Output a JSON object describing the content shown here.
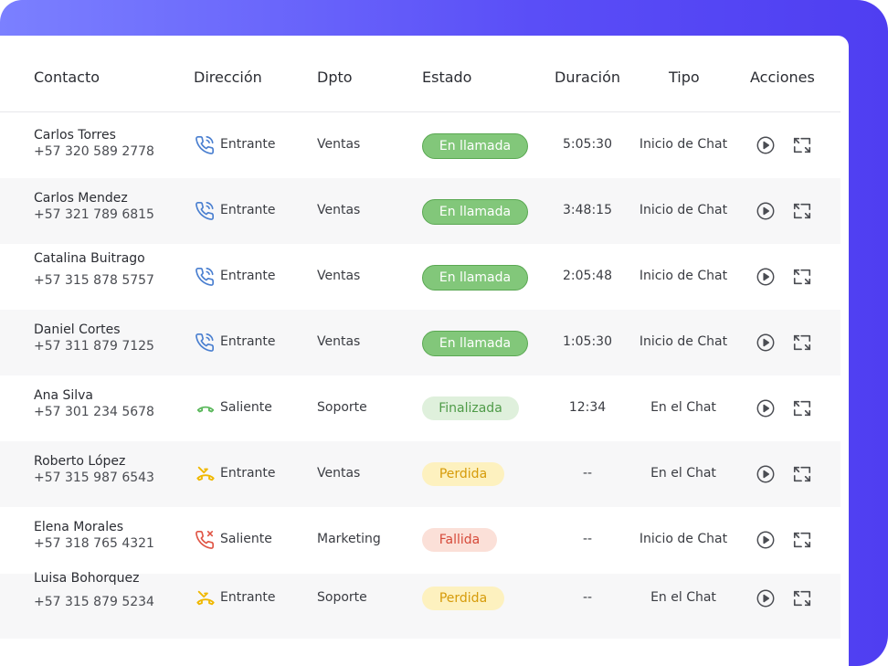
{
  "columns": {
    "contacto": "Contacto",
    "direccion": "Dirección",
    "dpto": "Dpto",
    "estado": "Estado",
    "duracion": "Duración",
    "tipo": "Tipo",
    "acciones": "Acciones"
  },
  "rows": [
    {
      "name": "Carlos Torres",
      "phone": "+57 320 589 2778",
      "direction_icon": "incoming-call-icon",
      "direction": "Entrante",
      "dept": "Ventas",
      "status": "En llamada",
      "status_style": "green",
      "duration": "5:05:30",
      "type": "Inicio de Chat"
    },
    {
      "name": "Carlos Mendez",
      "phone": "+57 321 789 6815",
      "direction_icon": "incoming-call-icon",
      "direction": "Entrante",
      "dept": "Ventas",
      "status": "En llamada",
      "status_style": "green",
      "duration": "3:48:15",
      "type": "Inicio de Chat"
    },
    {
      "name": "Catalina Buitrago",
      "phone": "+57 315 878 5757",
      "direction_icon": "incoming-call-icon",
      "direction": "Entrante",
      "dept": "Ventas",
      "status": "En llamada",
      "status_style": "green",
      "duration": "2:05:48",
      "type": "Inicio de Chat"
    },
    {
      "name": "Daniel Cortes",
      "phone": "+57 311 879 7125",
      "direction_icon": "incoming-call-icon",
      "direction": "Entrante",
      "dept": "Ventas",
      "status": "En llamada",
      "status_style": "green",
      "duration": "1:05:30",
      "type": "Inicio de Chat"
    },
    {
      "name": "Ana Silva",
      "phone": "+57 301 234 5678",
      "direction_icon": "hangup-call-icon",
      "direction": "Saliente",
      "dept": "Soporte",
      "status": "Finalizada",
      "status_style": "lightgreen",
      "duration": "12:34",
      "type": "En el Chat"
    },
    {
      "name": "Roberto López",
      "phone": "+57 315 987 6543",
      "direction_icon": "missed-call-icon",
      "direction": "Entrante",
      "dept": "Ventas",
      "status": "Perdida",
      "status_style": "yellow",
      "duration": "--",
      "type": "En el Chat"
    },
    {
      "name": "Elena Morales",
      "phone": "+57 318 765 4321",
      "direction_icon": "failed-call-icon",
      "direction": "Saliente",
      "dept": "Marketing",
      "status": "Fallida",
      "status_style": "red",
      "duration": "--",
      "type": "Inicio de Chat"
    },
    {
      "name": "Luisa Bohorquez",
      "phone": "+57 315 879 5234",
      "direction_icon": "missed-call-icon",
      "direction": "Entrante",
      "dept": "Soporte",
      "status": "Perdida",
      "status_style": "yellow",
      "duration": "--",
      "type": "En el Chat"
    }
  ],
  "actions": {
    "play_icon": "play-icon",
    "expand_icon": "expand-icon"
  },
  "colors": {
    "gradient_start": "#7b80ff",
    "gradient_end": "#4f3ef1",
    "status_green": "#82c77a",
    "status_light_green": "#dff0dc",
    "status_yellow": "#fdf1bf",
    "status_red": "#fbe0d8",
    "incoming_icon": "#4a7fd0",
    "hangup_icon": "#5bb85c",
    "missed_icon": "#f0b800",
    "failed_icon": "#e05545"
  }
}
